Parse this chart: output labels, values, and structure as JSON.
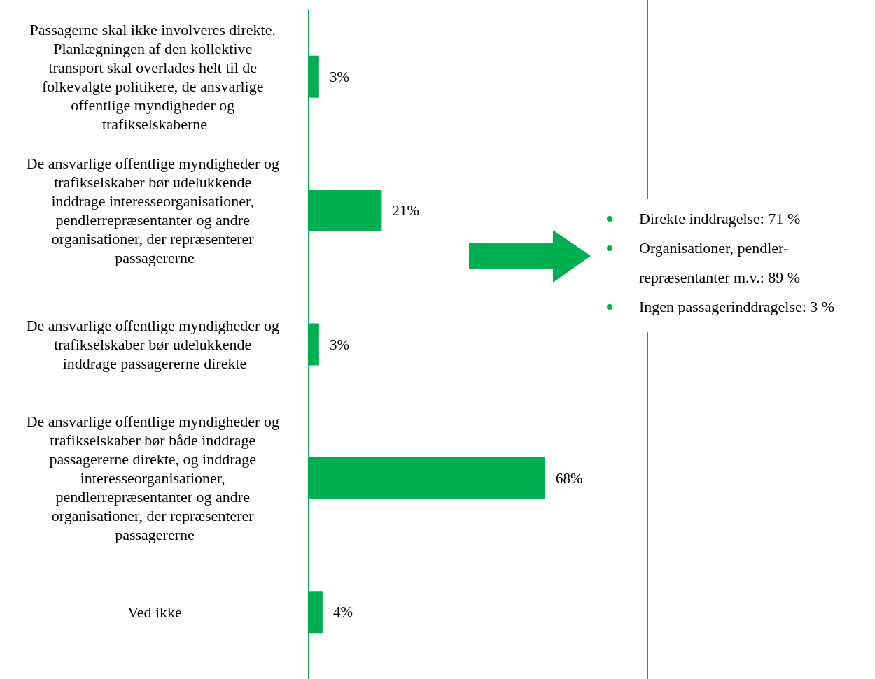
{
  "chart_data": {
    "type": "bar",
    "orientation": "horizontal",
    "categories": [
      "Passagerne skal ikke involveres direkte. Planlægningen af den kollektive transport skal overlades helt til de folkevalgte politikere, de ansvarlige offentlige myndigheder og trafikselskaberne",
      "De ansvarlige offentlige myndigheder og trafikselskaber bør udelukkende inddrage interesseorganisationer, pendlerrepræsentanter og andre organisationer, der repræsenterer passagererne",
      "De ansvarlige offentlige myndigheder og trafikselskaber bør udelukkende inddrage passagererne direkte",
      "De ansvarlige offentlige myndigheder og trafikselskaber bør både inddrage passagererne direkte, og inddrage interesseorganisationer, pendlerrepræsentanter og andre organisationer, der repræsenterer passagererne",
      "Ved ikke"
    ],
    "values": [
      3,
      21,
      3,
      68,
      4
    ],
    "value_labels": [
      "3%",
      "21%",
      "3%",
      "68%",
      "4%"
    ],
    "color": "#00b050",
    "tick_labels": "y",
    "annotations": [
      "Direkte inddragelse: 71 %",
      "Organisationer, pendler-repræsentanter m.v.: 89 %",
      "Ingen passagerinddragelse: 3 %"
    ]
  }
}
